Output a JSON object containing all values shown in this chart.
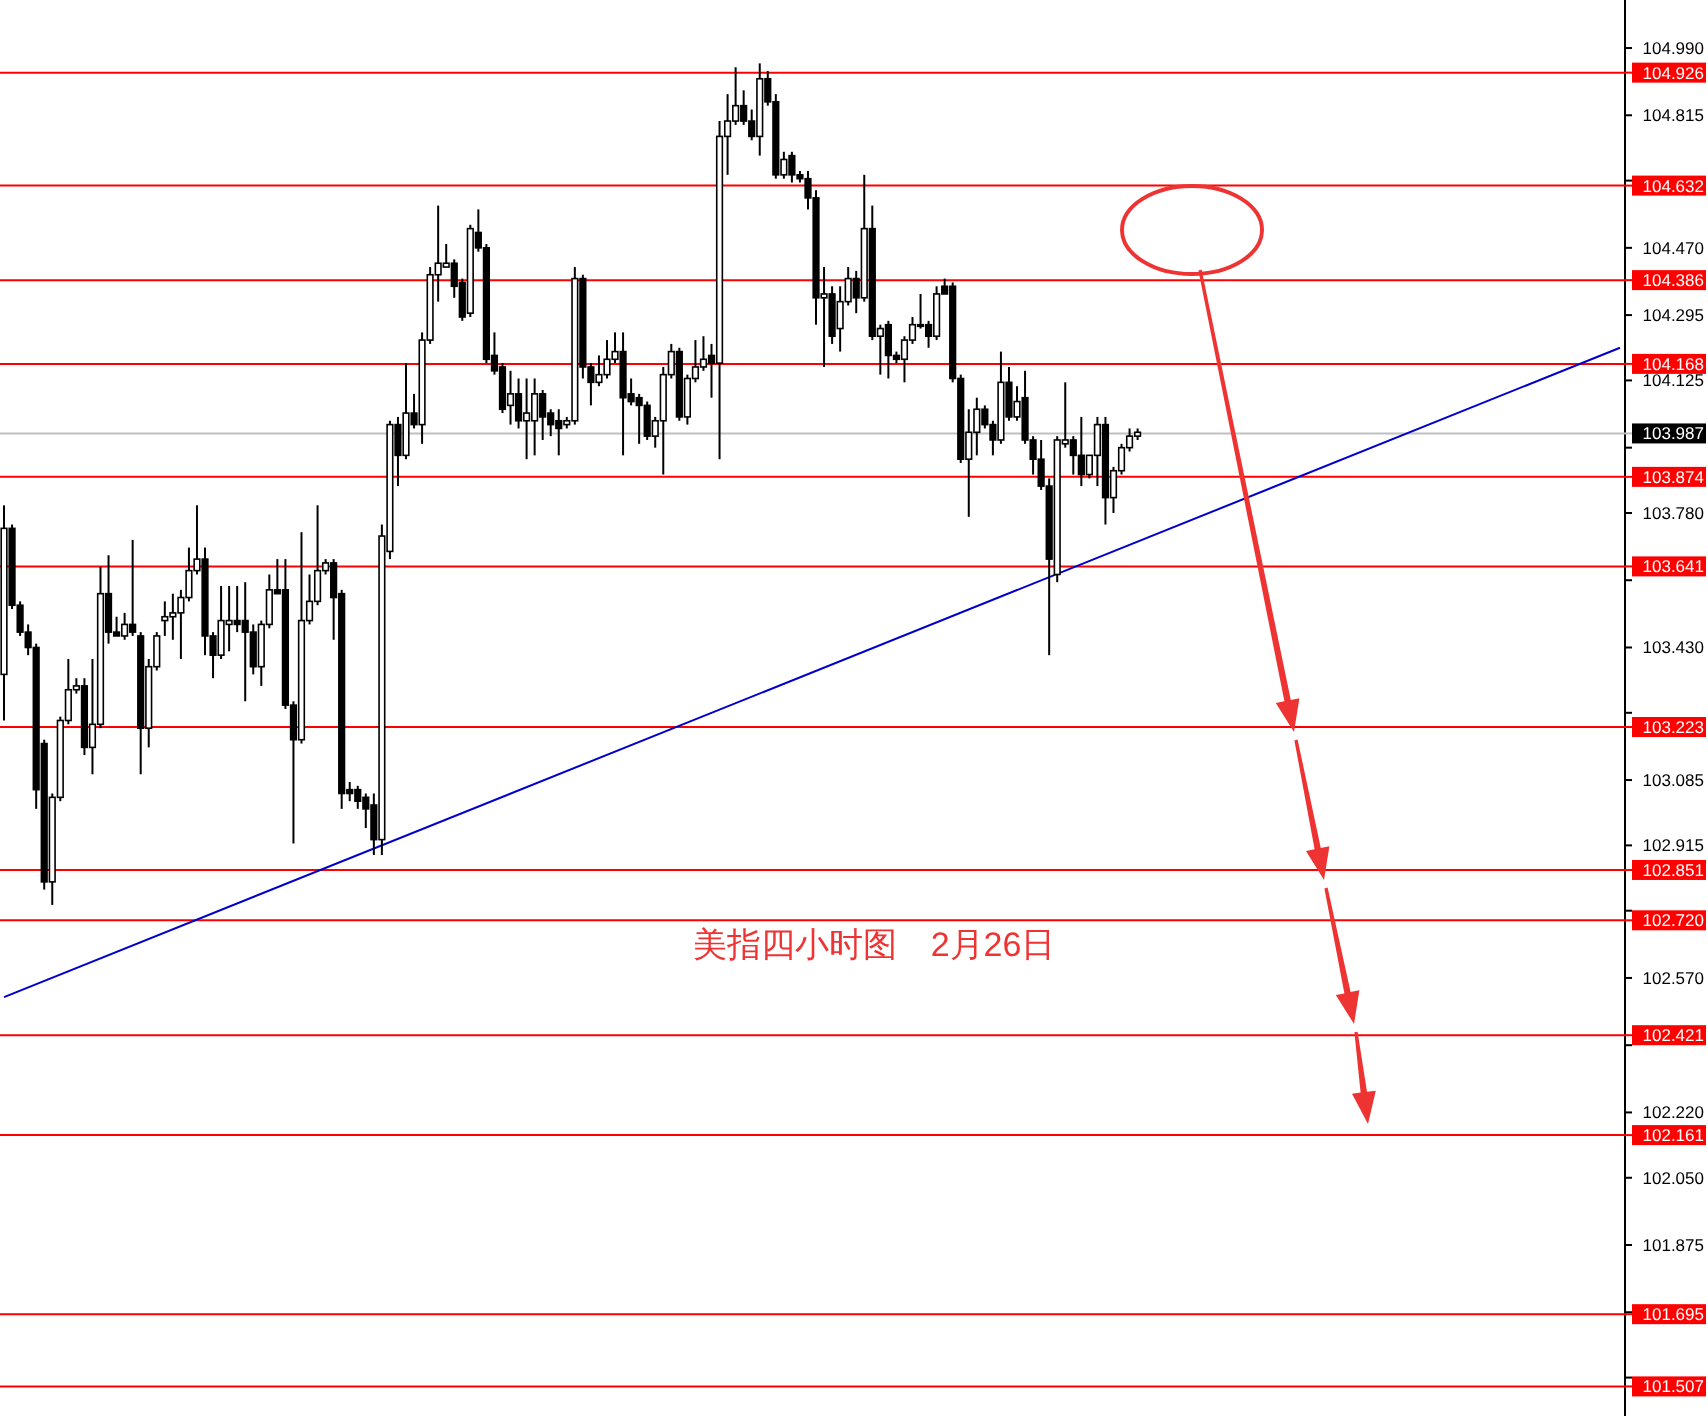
{
  "chart_data": {
    "type": "candlestick",
    "categories": [
      null,
      null,
      null,
      null,
      null,
      null,
      null,
      null,
      null,
      null,
      null,
      null,
      null,
      null,
      null,
      null,
      null,
      null,
      null,
      null,
      null,
      null,
      null,
      null,
      null,
      null,
      null,
      null,
      null,
      null,
      null,
      null,
      null,
      null,
      null,
      null,
      null,
      null,
      null,
      null,
      null,
      null,
      null,
      null,
      null,
      null,
      null,
      null,
      null,
      null,
      null,
      null,
      null,
      null,
      null,
      null,
      null,
      null,
      null,
      null,
      null,
      null,
      null,
      null,
      null,
      null,
      null,
      null,
      null,
      null,
      null,
      null,
      null,
      null,
      null,
      null,
      null,
      null,
      null,
      null,
      null,
      null,
      null,
      null,
      null,
      null,
      null,
      null,
      null,
      null,
      null,
      null,
      null,
      null,
      null,
      null,
      null,
      null,
      null,
      null,
      null,
      null,
      null,
      null,
      null,
      null,
      null,
      null,
      null,
      null,
      null,
      null,
      null,
      null,
      null,
      null,
      null,
      null,
      null,
      null,
      null,
      null,
      null,
      null,
      null,
      null,
      null,
      null,
      null,
      null,
      null,
      null,
      null,
      null,
      null,
      null,
      null,
      null,
      null,
      null,
      null,
      null,
      null,
      null,
      null,
      null,
      null,
      null,
      null,
      null,
      null,
      null,
      null,
      null,
      null,
      null,
      null,
      null,
      null,
      null,
      null,
      null,
      null,
      null,
      null,
      null,
      null,
      null,
      null,
      null,
      null,
      null,
      null,
      null,
      null,
      null,
      null,
      null,
      null,
      null,
      null,
      null,
      null,
      null,
      null,
      null,
      null,
      null,
      null,
      null,
      null,
      null,
      null,
      null,
      null,
      null,
      null,
      null,
      null,
      null,
      null,
      null
    ],
    "ohlc": [
      [
        103.36,
        103.8,
        103.24,
        103.74
      ],
      [
        103.74,
        103.75,
        103.53,
        103.54
      ],
      [
        103.54,
        103.55,
        103.46,
        103.47
      ],
      [
        103.47,
        103.49,
        103.41,
        103.43
      ],
      [
        103.43,
        103.44,
        103.01,
        103.06
      ],
      [
        103.18,
        103.19,
        102.8,
        102.82
      ],
      [
        102.82,
        103.05,
        102.76,
        103.04
      ],
      [
        103.04,
        103.25,
        103.03,
        103.24
      ],
      [
        103.24,
        103.4,
        103.23,
        103.32
      ],
      [
        103.32,
        103.35,
        103.31,
        103.33
      ],
      [
        103.33,
        103.35,
        103.15,
        103.17
      ],
      [
        103.17,
        103.4,
        103.1,
        103.23
      ],
      [
        103.23,
        103.64,
        103.22,
        103.57
      ],
      [
        103.57,
        103.67,
        103.44,
        103.47
      ],
      [
        103.47,
        103.51,
        103.46,
        103.46
      ],
      [
        103.46,
        103.52,
        103.45,
        103.49
      ],
      [
        103.49,
        103.71,
        103.46,
        103.47
      ],
      [
        103.46,
        103.47,
        103.1,
        103.22
      ],
      [
        103.22,
        103.4,
        103.17,
        103.38
      ],
      [
        103.38,
        103.47,
        103.37,
        103.46
      ],
      [
        103.5,
        103.55,
        103.46,
        103.51
      ],
      [
        103.51,
        103.57,
        103.45,
        103.52
      ],
      [
        103.52,
        103.58,
        103.4,
        103.56
      ],
      [
        103.56,
        103.69,
        103.55,
        103.63
      ],
      [
        103.63,
        103.8,
        103.62,
        103.66
      ],
      [
        103.66,
        103.69,
        103.41,
        103.46
      ],
      [
        103.46,
        103.47,
        103.35,
        103.41
      ],
      [
        103.41,
        103.59,
        103.4,
        103.5
      ],
      [
        103.49,
        103.59,
        103.42,
        103.5
      ],
      [
        103.5,
        103.59,
        103.47,
        103.49
      ],
      [
        103.5,
        103.6,
        103.29,
        103.47
      ],
      [
        103.47,
        103.49,
        103.36,
        103.38
      ],
      [
        103.38,
        103.5,
        103.33,
        103.49
      ],
      [
        103.49,
        103.62,
        103.48,
        103.58
      ],
      [
        103.58,
        103.66,
        103.57,
        103.57
      ],
      [
        103.58,
        103.66,
        103.27,
        103.28
      ],
      [
        103.28,
        103.29,
        102.92,
        103.19
      ],
      [
        103.19,
        103.73,
        103.18,
        103.5
      ],
      [
        103.5,
        103.62,
        103.49,
        103.55
      ],
      [
        103.55,
        103.8,
        103.54,
        103.63
      ],
      [
        103.63,
        103.66,
        103.62,
        103.65
      ],
      [
        103.65,
        103.66,
        103.45,
        103.56
      ],
      [
        103.57,
        103.58,
        103.01,
        103.05
      ],
      [
        103.06,
        103.08,
        103.03,
        103.05
      ],
      [
        103.06,
        103.07,
        103.01,
        103.03
      ],
      [
        103.04,
        103.05,
        102.96,
        103.01
      ],
      [
        103.02,
        103.05,
        102.89,
        102.93
      ],
      [
        102.93,
        103.75,
        102.89,
        103.72
      ],
      [
        103.68,
        104.02,
        103.66,
        104.01
      ],
      [
        104.01,
        104.03,
        103.85,
        103.93
      ],
      [
        103.93,
        104.17,
        103.92,
        104.04
      ],
      [
        104.04,
        104.09,
        104.0,
        104.01
      ],
      [
        104.01,
        104.25,
        103.96,
        104.23
      ],
      [
        104.23,
        104.42,
        104.22,
        104.4
      ],
      [
        104.4,
        104.58,
        104.33,
        104.43
      ],
      [
        104.42,
        104.48,
        104.42,
        104.43
      ],
      [
        104.43,
        104.44,
        104.34,
        104.37
      ],
      [
        104.38,
        104.39,
        104.28,
        104.29
      ],
      [
        104.3,
        104.53,
        104.29,
        104.52
      ],
      [
        104.51,
        104.57,
        104.46,
        104.47
      ],
      [
        104.47,
        104.48,
        104.17,
        104.18
      ],
      [
        104.19,
        104.25,
        104.14,
        104.15
      ],
      [
        104.16,
        104.17,
        104.04,
        104.05
      ],
      [
        104.06,
        104.15,
        104.01,
        104.09
      ],
      [
        104.09,
        104.13,
        104.0,
        104.02
      ],
      [
        104.02,
        104.13,
        103.92,
        104.04
      ],
      [
        104.02,
        104.13,
        103.93,
        104.09
      ],
      [
        104.09,
        104.1,
        103.97,
        104.03
      ],
      [
        104.04,
        104.05,
        103.98,
        104.01
      ],
      [
        104.02,
        104.05,
        103.93,
        104.0
      ],
      [
        104.01,
        104.03,
        104.0,
        104.02
      ],
      [
        104.02,
        104.42,
        104.01,
        104.39
      ],
      [
        104.39,
        104.4,
        104.13,
        104.16
      ],
      [
        104.16,
        104.17,
        104.06,
        104.12
      ],
      [
        104.12,
        104.19,
        104.11,
        104.14
      ],
      [
        104.14,
        104.23,
        104.13,
        104.18
      ],
      [
        104.18,
        104.25,
        104.17,
        104.2
      ],
      [
        104.2,
        104.25,
        103.93,
        104.08
      ],
      [
        104.09,
        104.13,
        104.06,
        104.07
      ],
      [
        104.08,
        104.09,
        103.96,
        104.06
      ],
      [
        104.06,
        104.07,
        103.97,
        103.98
      ],
      [
        103.98,
        104.03,
        103.95,
        104.02
      ],
      [
        104.02,
        104.16,
        103.88,
        104.14
      ],
      [
        104.14,
        104.22,
        104.13,
        104.2
      ],
      [
        104.2,
        104.21,
        104.02,
        104.03
      ],
      [
        104.03,
        104.14,
        104.01,
        104.13
      ],
      [
        104.13,
        104.23,
        104.12,
        104.16
      ],
      [
        104.16,
        104.24,
        104.15,
        104.18
      ],
      [
        104.19,
        104.22,
        104.08,
        104.17
      ],
      [
        104.17,
        104.8,
        103.92,
        104.76
      ],
      [
        104.76,
        104.87,
        104.66,
        104.8
      ],
      [
        104.8,
        104.94,
        104.79,
        104.84
      ],
      [
        104.84,
        104.88,
        104.79,
        104.8
      ],
      [
        104.8,
        104.83,
        104.75,
        104.76
      ],
      [
        104.76,
        104.95,
        104.71,
        104.91
      ],
      [
        104.91,
        104.93,
        104.84,
        104.85
      ],
      [
        104.85,
        104.87,
        104.65,
        104.66
      ],
      [
        104.66,
        104.72,
        104.65,
        104.7
      ],
      [
        104.71,
        104.72,
        104.64,
        104.66
      ],
      [
        104.66,
        104.67,
        104.64,
        104.65
      ],
      [
        104.65,
        104.67,
        104.57,
        104.6
      ],
      [
        104.6,
        104.62,
        104.27,
        104.34
      ],
      [
        104.34,
        104.42,
        104.16,
        104.35
      ],
      [
        104.35,
        104.37,
        104.22,
        104.24
      ],
      [
        104.26,
        104.37,
        104.2,
        104.33
      ],
      [
        104.33,
        104.42,
        104.32,
        104.39
      ],
      [
        104.39,
        104.41,
        104.3,
        104.34
      ],
      [
        104.34,
        104.66,
        104.33,
        104.52
      ],
      [
        104.52,
        104.58,
        104.23,
        104.24
      ],
      [
        104.24,
        104.27,
        104.14,
        104.26
      ],
      [
        104.27,
        104.28,
        104.13,
        104.19
      ],
      [
        104.19,
        104.2,
        104.17,
        104.18
      ],
      [
        104.18,
        104.24,
        104.12,
        104.23
      ],
      [
        104.23,
        104.29,
        104.22,
        104.27
      ],
      [
        104.27,
        104.35,
        104.26,
        104.27
      ],
      [
        104.27,
        104.28,
        104.21,
        104.24
      ],
      [
        104.24,
        104.37,
        104.23,
        104.35
      ],
      [
        104.37,
        104.39,
        104.35,
        104.35
      ],
      [
        104.37,
        104.38,
        104.12,
        104.13
      ],
      [
        104.13,
        104.14,
        103.91,
        103.92
      ],
      [
        103.92,
        104.05,
        103.77,
        103.99
      ],
      [
        103.99,
        104.08,
        103.93,
        104.05
      ],
      [
        104.05,
        104.06,
        104.0,
        104.01
      ],
      [
        104.01,
        104.02,
        103.93,
        103.97
      ],
      [
        103.97,
        104.2,
        103.96,
        104.12
      ],
      [
        104.12,
        104.16,
        104.02,
        104.03
      ],
      [
        104.03,
        104.11,
        104.02,
        104.07
      ],
      [
        104.08,
        104.15,
        103.96,
        103.97
      ],
      [
        103.97,
        103.98,
        103.88,
        103.92
      ],
      [
        103.92,
        103.97,
        103.84,
        103.85
      ],
      [
        103.85,
        103.87,
        103.41,
        103.66
      ],
      [
        103.62,
        103.98,
        103.6,
        103.97
      ],
      [
        103.96,
        104.12,
        103.95,
        103.97
      ],
      [
        103.97,
        103.98,
        103.88,
        103.93
      ],
      [
        103.93,
        104.03,
        103.85,
        103.88
      ],
      [
        103.88,
        103.93,
        103.87,
        103.93
      ],
      [
        103.93,
        104.03,
        103.85,
        104.01
      ],
      [
        104.01,
        104.03,
        103.75,
        103.82
      ],
      [
        103.82,
        103.9,
        103.78,
        103.89
      ],
      [
        103.89,
        103.96,
        103.88,
        103.95
      ],
      [
        103.95,
        104.0,
        103.94,
        103.98
      ],
      [
        103.98,
        104.0,
        103.97,
        103.99
      ],
      null,
      null,
      null,
      null,
      null,
      null,
      null,
      null,
      null,
      null,
      null,
      null,
      null,
      null,
      null,
      null,
      null,
      null,
      null,
      null,
      null,
      null,
      null,
      null,
      null,
      null,
      null,
      null,
      null,
      null,
      null,
      null,
      null,
      null,
      null,
      null,
      null,
      null,
      null,
      null,
      null,
      null,
      null,
      null,
      null,
      null,
      null,
      null,
      null,
      null,
      null,
      null,
      null,
      null,
      null,
      null,
      null,
      null,
      null,
      null
    ],
    "series": [
      {
        "type": "line",
        "color": "#0000cc",
        "values": [
          102.52,
          null,
          null,
          null,
          null,
          null,
          null,
          null,
          null,
          null,
          null,
          null,
          null,
          null,
          null,
          null,
          null,
          null,
          null,
          null,
          null,
          null,
          null,
          null,
          null,
          null,
          null,
          null,
          null,
          null,
          null,
          null,
          null,
          null,
          null,
          null,
          null,
          null,
          null,
          null,
          null,
          null,
          null,
          null,
          null,
          null,
          null,
          null,
          null,
          null,
          null,
          null,
          null,
          null,
          null,
          null,
          null,
          null,
          null,
          null,
          null,
          null,
          null,
          null,
          null,
          null,
          null,
          null,
          null,
          null,
          null,
          null,
          null,
          null,
          null,
          null,
          null,
          null,
          null,
          null,
          null,
          null,
          null,
          null,
          null,
          null,
          null,
          null,
          null,
          null,
          null,
          null,
          null,
          null,
          null,
          null,
          null,
          null,
          null,
          null,
          null,
          null,
          null,
          null,
          null,
          null,
          null,
          null,
          null,
          null,
          null,
          null,
          null,
          null,
          null,
          null,
          null,
          null,
          null,
          null,
          null,
          null,
          null,
          null,
          null,
          null,
          null,
          null,
          null,
          null,
          null,
          null,
          null,
          null,
          null,
          null,
          null,
          null,
          null,
          null,
          null,
          null,
          null,
          null,
          null,
          null,
          null,
          null,
          null,
          null,
          null,
          null,
          null,
          null,
          null,
          null,
          null,
          null,
          null,
          null,
          null,
          null,
          null,
          null,
          null,
          null,
          null,
          null,
          null,
          null,
          null,
          null,
          null,
          null,
          null,
          null,
          null,
          null,
          null,
          null,
          null,
          null,
          null,
          null,
          null,
          null,
          null,
          null,
          null,
          null,
          null,
          null,
          null,
          null,
          null,
          null,
          null,
          null,
          null,
          null,
          null,
          104.21
        ]
      }
    ],
    "ylim": [
      101.43,
      105.115
    ],
    "yticks": [
      {
        "value": 104.99,
        "label": "104.990"
      },
      {
        "value": 104.645,
        "label": null
      },
      {
        "value": 104.815,
        "label": "104.815"
      },
      {
        "value": 104.47,
        "label": "104.470"
      },
      {
        "value": 104.295,
        "label": "104.295"
      },
      {
        "value": 104.125,
        "label": "104.125"
      },
      {
        "value": 103.95,
        "label": null
      },
      {
        "value": 103.78,
        "label": "103.780"
      },
      {
        "value": 103.605,
        "label": null
      },
      {
        "value": 103.43,
        "label": "103.430"
      },
      {
        "value": 103.26,
        "label": null
      },
      {
        "value": 103.085,
        "label": "103.085"
      },
      {
        "value": 102.915,
        "label": "102.915"
      },
      {
        "value": 102.745,
        "label": null
      },
      {
        "value": 102.57,
        "label": "102.570"
      },
      {
        "value": 102.395,
        "label": null
      },
      {
        "value": 102.22,
        "label": "102.220"
      },
      {
        "value": 102.05,
        "label": "102.050"
      },
      {
        "value": 101.875,
        "label": "101.875"
      },
      {
        "value": 101.7,
        "label": null
      },
      {
        "value": 101.53,
        "label": null
      }
    ],
    "tick_labels": "y",
    "ref_lines": [
      {
        "axis": "y",
        "value": 104.926,
        "label": "104.926",
        "color": "#ff0000"
      },
      {
        "axis": "y",
        "value": 104.632,
        "label": "104.632",
        "color": "#ff0000"
      },
      {
        "axis": "y",
        "value": 104.386,
        "label": "104.386",
        "color": "#ff0000"
      },
      {
        "axis": "y",
        "value": 104.168,
        "label": "104.168",
        "color": "#ff0000"
      },
      {
        "axis": "y",
        "value": 103.987,
        "label": "103.987",
        "color": "#c0c0c0"
      },
      {
        "axis": "y",
        "value": 103.874,
        "label": "103.874",
        "color": "#ff0000"
      },
      {
        "axis": "y",
        "value": 103.641,
        "label": "103.641",
        "color": "#ff0000"
      },
      {
        "axis": "y",
        "value": 103.223,
        "label": "103.223",
        "color": "#ff0000"
      },
      {
        "axis": "y",
        "value": 102.851,
        "label": "102.851",
        "color": "#ff0000"
      },
      {
        "axis": "y",
        "value": 102.72,
        "label": "102.720",
        "color": "#ff0000"
      },
      {
        "axis": "y",
        "value": 102.421,
        "label": "102.421",
        "color": "#ff0000"
      },
      {
        "axis": "y",
        "value": 102.161,
        "label": "102.161",
        "color": "#ff0000"
      },
      {
        "axis": "y",
        "value": 101.695,
        "label": "101.695",
        "color": "#ff0000"
      },
      {
        "axis": "y",
        "value": 101.507,
        "label": "101.507",
        "color": "#ff0000"
      }
    ],
    "annotations": [
      "美指四小时图　2月26日"
    ],
    "grid": false
  }
}
